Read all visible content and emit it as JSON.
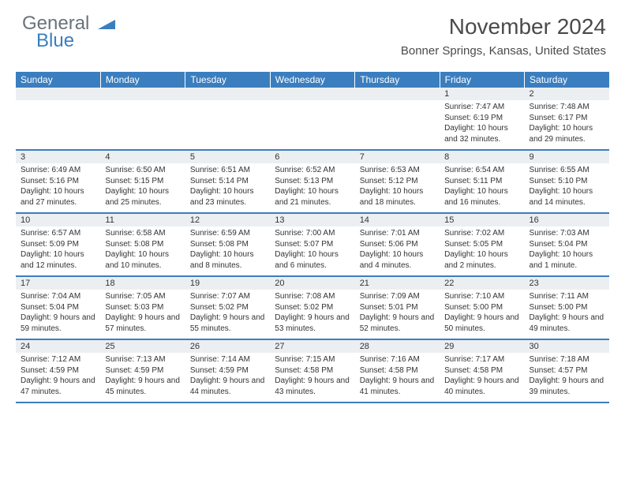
{
  "logo": {
    "word1": "General",
    "word2": "Blue"
  },
  "title": "November 2024",
  "location": "Bonner Springs, Kansas, United States",
  "colors": {
    "header_bg": "#3a7ebf",
    "header_text": "#ffffff",
    "daynum_bg": "#eceff2",
    "border": "#3a7ebf",
    "logo_gray": "#6a737b",
    "logo_blue": "#3a7ebf",
    "text": "#333333"
  },
  "columns": [
    "Sunday",
    "Monday",
    "Tuesday",
    "Wednesday",
    "Thursday",
    "Friday",
    "Saturday"
  ],
  "weeks": [
    [
      null,
      null,
      null,
      null,
      null,
      {
        "n": "1",
        "sr": "7:47 AM",
        "ss": "6:19 PM",
        "dl": "10 hours and 32 minutes."
      },
      {
        "n": "2",
        "sr": "7:48 AM",
        "ss": "6:17 PM",
        "dl": "10 hours and 29 minutes."
      }
    ],
    [
      {
        "n": "3",
        "sr": "6:49 AM",
        "ss": "5:16 PM",
        "dl": "10 hours and 27 minutes."
      },
      {
        "n": "4",
        "sr": "6:50 AM",
        "ss": "5:15 PM",
        "dl": "10 hours and 25 minutes."
      },
      {
        "n": "5",
        "sr": "6:51 AM",
        "ss": "5:14 PM",
        "dl": "10 hours and 23 minutes."
      },
      {
        "n": "6",
        "sr": "6:52 AM",
        "ss": "5:13 PM",
        "dl": "10 hours and 21 minutes."
      },
      {
        "n": "7",
        "sr": "6:53 AM",
        "ss": "5:12 PM",
        "dl": "10 hours and 18 minutes."
      },
      {
        "n": "8",
        "sr": "6:54 AM",
        "ss": "5:11 PM",
        "dl": "10 hours and 16 minutes."
      },
      {
        "n": "9",
        "sr": "6:55 AM",
        "ss": "5:10 PM",
        "dl": "10 hours and 14 minutes."
      }
    ],
    [
      {
        "n": "10",
        "sr": "6:57 AM",
        "ss": "5:09 PM",
        "dl": "10 hours and 12 minutes."
      },
      {
        "n": "11",
        "sr": "6:58 AM",
        "ss": "5:08 PM",
        "dl": "10 hours and 10 minutes."
      },
      {
        "n": "12",
        "sr": "6:59 AM",
        "ss": "5:08 PM",
        "dl": "10 hours and 8 minutes."
      },
      {
        "n": "13",
        "sr": "7:00 AM",
        "ss": "5:07 PM",
        "dl": "10 hours and 6 minutes."
      },
      {
        "n": "14",
        "sr": "7:01 AM",
        "ss": "5:06 PM",
        "dl": "10 hours and 4 minutes."
      },
      {
        "n": "15",
        "sr": "7:02 AM",
        "ss": "5:05 PM",
        "dl": "10 hours and 2 minutes."
      },
      {
        "n": "16",
        "sr": "7:03 AM",
        "ss": "5:04 PM",
        "dl": "10 hours and 1 minute."
      }
    ],
    [
      {
        "n": "17",
        "sr": "7:04 AM",
        "ss": "5:04 PM",
        "dl": "9 hours and 59 minutes."
      },
      {
        "n": "18",
        "sr": "7:05 AM",
        "ss": "5:03 PM",
        "dl": "9 hours and 57 minutes."
      },
      {
        "n": "19",
        "sr": "7:07 AM",
        "ss": "5:02 PM",
        "dl": "9 hours and 55 minutes."
      },
      {
        "n": "20",
        "sr": "7:08 AM",
        "ss": "5:02 PM",
        "dl": "9 hours and 53 minutes."
      },
      {
        "n": "21",
        "sr": "7:09 AM",
        "ss": "5:01 PM",
        "dl": "9 hours and 52 minutes."
      },
      {
        "n": "22",
        "sr": "7:10 AM",
        "ss": "5:00 PM",
        "dl": "9 hours and 50 minutes."
      },
      {
        "n": "23",
        "sr": "7:11 AM",
        "ss": "5:00 PM",
        "dl": "9 hours and 49 minutes."
      }
    ],
    [
      {
        "n": "24",
        "sr": "7:12 AM",
        "ss": "4:59 PM",
        "dl": "9 hours and 47 minutes."
      },
      {
        "n": "25",
        "sr": "7:13 AM",
        "ss": "4:59 PM",
        "dl": "9 hours and 45 minutes."
      },
      {
        "n": "26",
        "sr": "7:14 AM",
        "ss": "4:59 PM",
        "dl": "9 hours and 44 minutes."
      },
      {
        "n": "27",
        "sr": "7:15 AM",
        "ss": "4:58 PM",
        "dl": "9 hours and 43 minutes."
      },
      {
        "n": "28",
        "sr": "7:16 AM",
        "ss": "4:58 PM",
        "dl": "9 hours and 41 minutes."
      },
      {
        "n": "29",
        "sr": "7:17 AM",
        "ss": "4:58 PM",
        "dl": "9 hours and 40 minutes."
      },
      {
        "n": "30",
        "sr": "7:18 AM",
        "ss": "4:57 PM",
        "dl": "9 hours and 39 minutes."
      }
    ]
  ],
  "labels": {
    "sunrise": "Sunrise: ",
    "sunset": "Sunset: ",
    "daylight": "Daylight: "
  }
}
